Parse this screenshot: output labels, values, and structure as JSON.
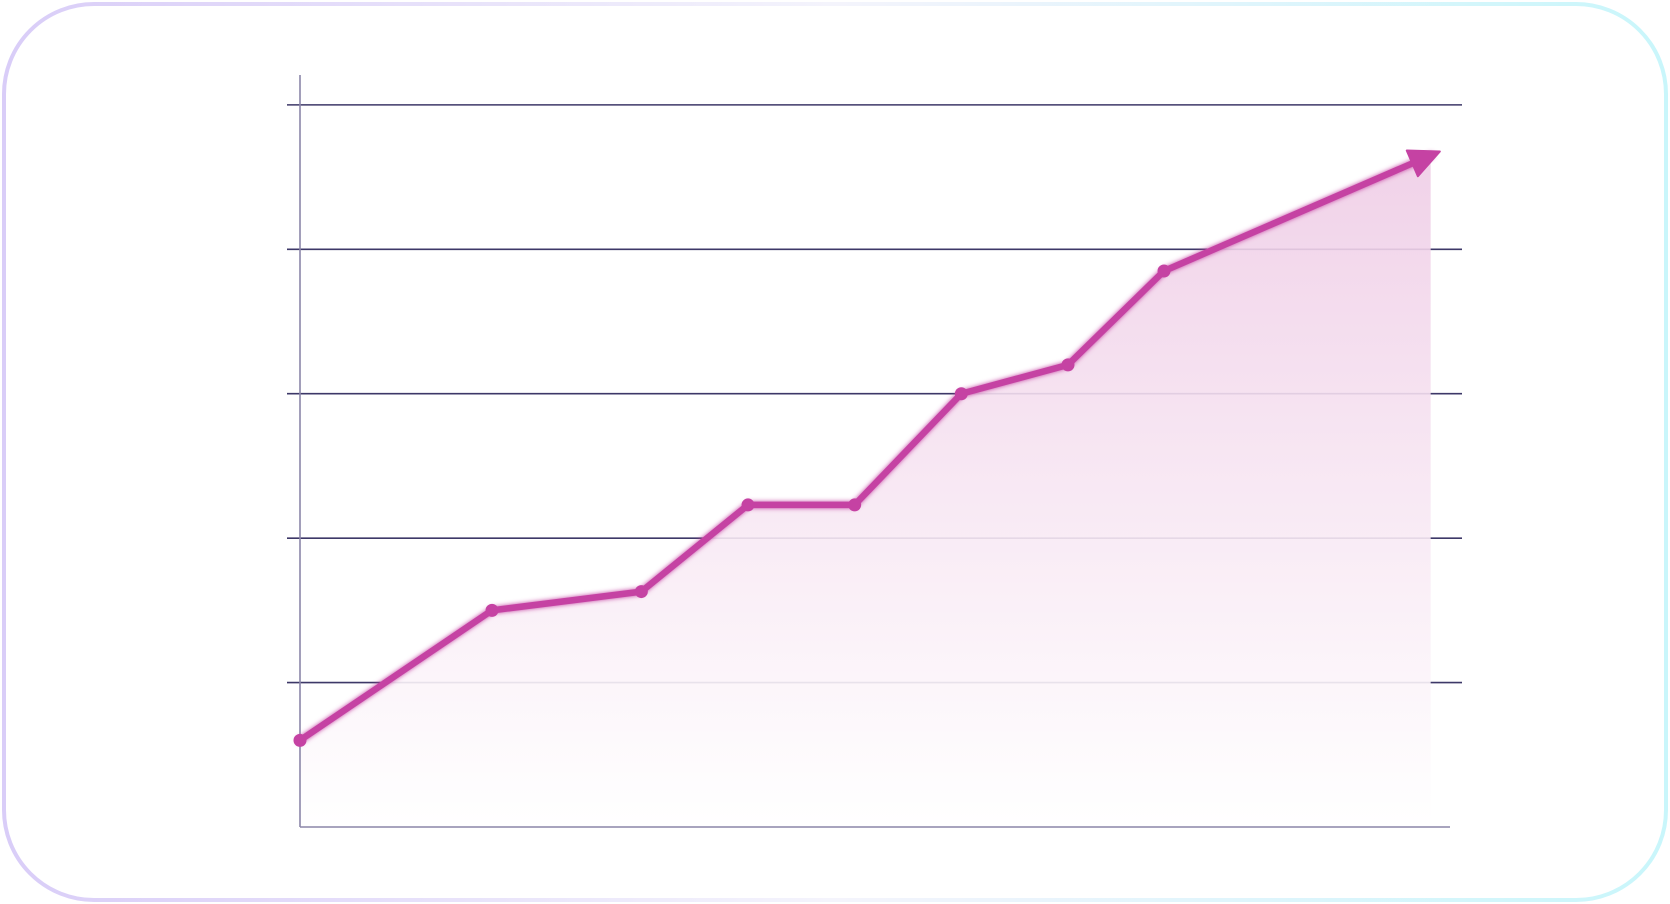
{
  "chart_data": {
    "type": "area",
    "title": "",
    "xlabel": "",
    "ylabel": "",
    "x": [
      0,
      1.8,
      3.2,
      4.2,
      5.2,
      6.2,
      7.2,
      8.1,
      10.6
    ],
    "series": [
      {
        "values": [
          0.6,
          1.5,
          1.63,
          2.23,
          2.23,
          3.0,
          3.2,
          3.85,
          4.65
        ]
      }
    ],
    "xlim": [
      0,
      10.8
    ],
    "ylim": [
      0,
      5.2
    ],
    "gridlines_y": [
      1,
      2,
      3,
      4,
      5
    ],
    "grid": "horizontal",
    "legend": "none",
    "final_point_arrow": true
  },
  "colors": {
    "line": "#c542a3",
    "fill_top": "#efcde6",
    "fill_bottom": "#ffffff",
    "gridline": "#3d3868",
    "axis": "#8b86a8",
    "frame_left": "#d9cdf8",
    "frame_right": "#c9f6fb"
  }
}
